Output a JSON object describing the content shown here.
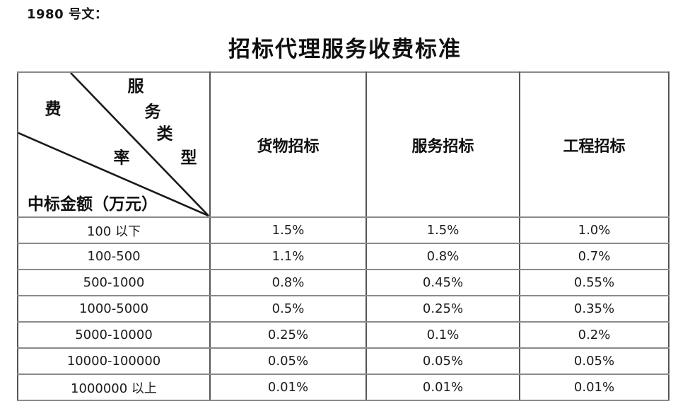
{
  "doc_number": "1980 号文：",
  "title": "招标代理服务收费标准",
  "colors": {
    "background": "#ffffff",
    "text": "#111111",
    "border_horizontal": "#8a8a8a",
    "border_vertical": "#565656",
    "diagonal_line": "#1a1a1a"
  },
  "table": {
    "corner": {
      "diag_label": "服务类型",
      "diag_label_chars": [
        "服",
        "务",
        "类",
        "型"
      ],
      "fee_label": "费率",
      "fee_label_chars": [
        "费",
        "率"
      ],
      "row_axis_label": "中标金额（万元）"
    },
    "columns": [
      "货物招标",
      "服务招标",
      "工程招标"
    ],
    "rows": [
      {
        "range": "100 以下",
        "values": [
          "1.5%",
          "1.5%",
          "1.0%"
        ]
      },
      {
        "range": "100-500",
        "values": [
          "1.1%",
          "0.8%",
          "0.7%"
        ]
      },
      {
        "range": "500-1000",
        "values": [
          "0.8%",
          "0.45%",
          "0.55%"
        ]
      },
      {
        "range": "1000-5000",
        "values": [
          "0.5%",
          "0.25%",
          "0.35%"
        ]
      },
      {
        "range": "5000-10000",
        "values": [
          "0.25%",
          "0.1%",
          "0.2%"
        ]
      },
      {
        "range": "10000-100000",
        "values": [
          "0.05%",
          "0.05%",
          "0.05%"
        ]
      },
      {
        "range": "1000000 以上",
        "values": [
          "0.01%",
          "0.01%",
          "0.01%"
        ]
      }
    ]
  }
}
